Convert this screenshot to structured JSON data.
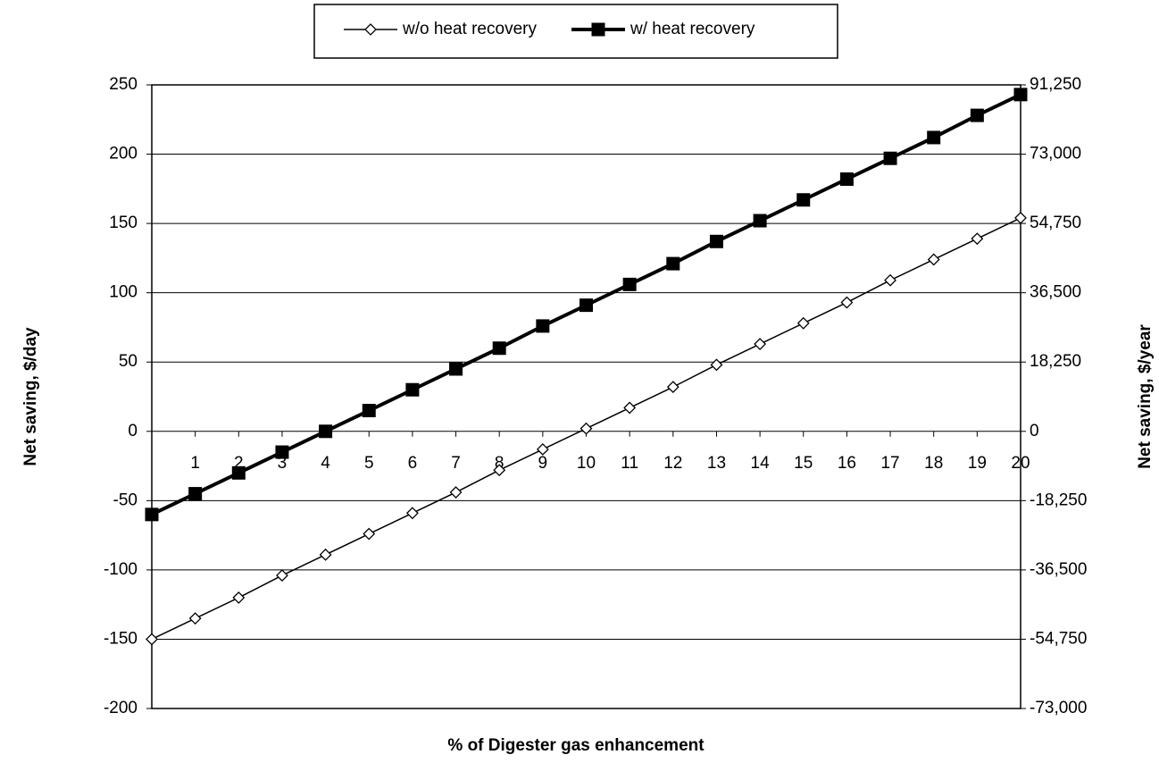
{
  "chart_data": {
    "type": "line",
    "x_label": "% of Digester gas enhancement",
    "y_label": "Net saving, $/day",
    "y2_label": "Net saving, $/year",
    "x": [
      0,
      1,
      2,
      3,
      4,
      5,
      6,
      7,
      8,
      9,
      10,
      11,
      12,
      13,
      14,
      15,
      16,
      17,
      18,
      19,
      20
    ],
    "xlim": [
      0,
      20
    ],
    "xticks": [
      1,
      2,
      3,
      4,
      5,
      6,
      7,
      8,
      9,
      10,
      11,
      12,
      13,
      14,
      15,
      16,
      17,
      18,
      19,
      20
    ],
    "ylim": [
      -200,
      250
    ],
    "yticks": [
      -200,
      -150,
      -100,
      -50,
      0,
      50,
      100,
      150,
      200,
      250
    ],
    "y2lim": [
      -73000,
      91250
    ],
    "y2ticks": [
      {
        "value": -73000,
        "label": "-73,000"
      },
      {
        "value": -54750,
        "label": "-54,750"
      },
      {
        "value": -36500,
        "label": "-36,500"
      },
      {
        "value": -18250,
        "label": "-18,250"
      },
      0,
      {
        "value": 18250,
        "label": "18,250"
      },
      {
        "value": 36500,
        "label": "36,500"
      },
      {
        "value": 54750,
        "label": "54,750"
      },
      {
        "value": 73000,
        "label": "73,000"
      },
      {
        "value": 91250,
        "label": "91,250"
      }
    ],
    "grid": true,
    "legend": "top",
    "series": [
      {
        "name": "w/o heat recovery",
        "color": "#000000",
        "marker": "diamond",
        "values": [
          -150,
          -135,
          -120,
          -104,
          -89,
          -74,
          -59,
          -44,
          -28,
          -13,
          2,
          17,
          32,
          48,
          63,
          78,
          93,
          109,
          124,
          139,
          154
        ]
      },
      {
        "name": "w/ heat recovery",
        "color": "#000000",
        "marker": "square",
        "values": [
          -60,
          -45,
          -30,
          -15,
          0,
          15,
          30,
          45,
          60,
          76,
          91,
          106,
          121,
          137,
          152,
          167,
          182,
          197,
          212,
          228,
          243
        ]
      }
    ]
  }
}
